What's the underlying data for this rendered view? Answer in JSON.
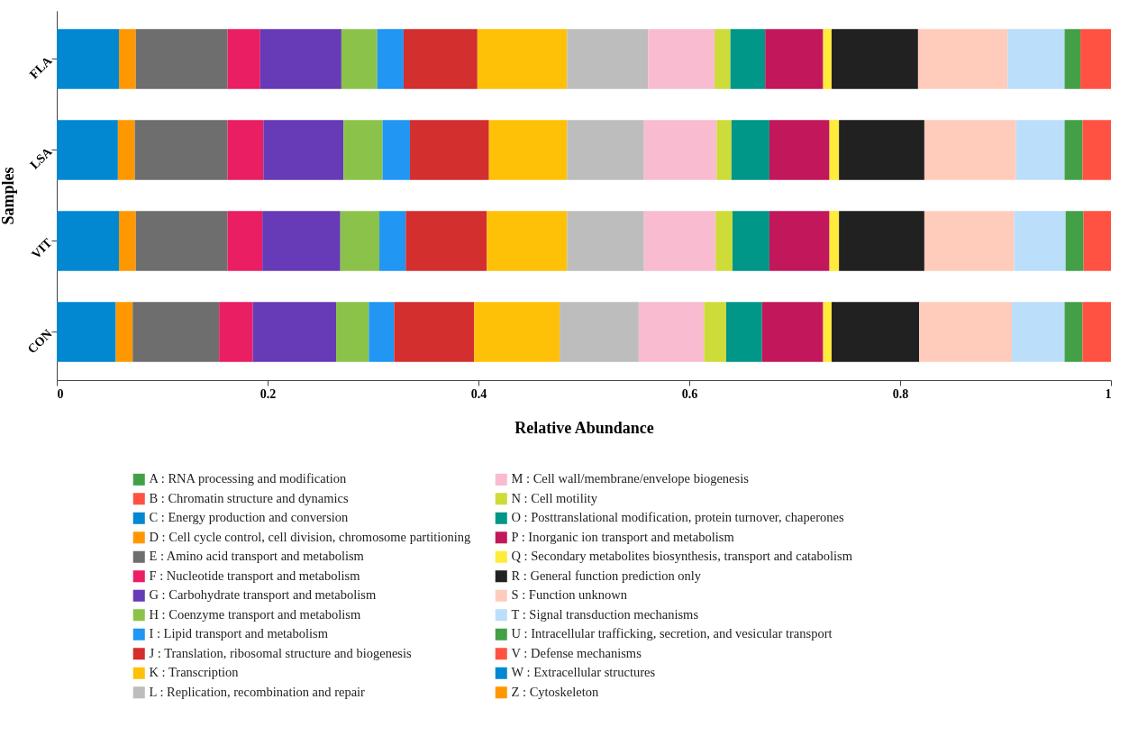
{
  "chart_data": {
    "type": "bar",
    "orientation": "horizontal",
    "stacked": true,
    "xlabel": "Relative Abundance",
    "ylabel": "Samples",
    "categories": [
      "FLA",
      "LSA",
      "VIT",
      "CON"
    ],
    "xlim": [
      0,
      1
    ],
    "xticks": [
      0,
      0.2,
      0.4,
      0.6,
      0.8,
      1
    ],
    "grid": false,
    "legend": "bottom",
    "series": [
      {
        "name": "A : RNA processing and modification",
        "color": "#43a047",
        "values": [
          0,
          0,
          0,
          0
        ]
      },
      {
        "name": "B : Chromatin structure and dynamics",
        "color": "#ff5242",
        "values": [
          0,
          0,
          0,
          0
        ]
      },
      {
        "name": "C : Energy production and conversion",
        "color": "#0288d1",
        "values": [
          0.059,
          0.058,
          0.059,
          0.056
        ]
      },
      {
        "name": "D : Cell cycle control, cell division, chromosome partitioning",
        "color": "#ff9800",
        "values": [
          0.016,
          0.016,
          0.016,
          0.016
        ]
      },
      {
        "name": "E : Amino acid transport and metabolism",
        "color": "#6e6e6e",
        "values": [
          0.087,
          0.088,
          0.087,
          0.082
        ]
      },
      {
        "name": "F : Nucleotide transport and metabolism",
        "color": "#e91e63",
        "values": [
          0.031,
          0.034,
          0.033,
          0.032
        ]
      },
      {
        "name": "G : Carbohydrate transport and metabolism",
        "color": "#673ab7",
        "values": [
          0.077,
          0.076,
          0.074,
          0.079
        ]
      },
      {
        "name": "H : Coenzyme transport and metabolism",
        "color": "#8bc34a",
        "values": [
          0.034,
          0.037,
          0.037,
          0.031
        ]
      },
      {
        "name": "I : Lipid transport and metabolism",
        "color": "#2196f3",
        "values": [
          0.025,
          0.026,
          0.025,
          0.024
        ]
      },
      {
        "name": "J : Translation, ribosomal structure and biogenesis",
        "color": "#d32f2f",
        "values": [
          0.07,
          0.075,
          0.077,
          0.076
        ]
      },
      {
        "name": "K : Transcription",
        "color": "#ffc107",
        "values": [
          0.085,
          0.074,
          0.076,
          0.081
        ]
      },
      {
        "name": "L : Replication, recombination and repair",
        "color": "#bdbdbd",
        "values": [
          0.077,
          0.073,
          0.073,
          0.075
        ]
      },
      {
        "name": "M : Cell wall/membrane/envelope biogenesis",
        "color": "#f8bbd0",
        "values": [
          0.063,
          0.069,
          0.068,
          0.062
        ]
      },
      {
        "name": "N : Cell motility",
        "color": "#cddc39",
        "values": [
          0.015,
          0.014,
          0.016,
          0.021
        ]
      },
      {
        "name": "O : Posttranslational modification, protein turnover, chaperones",
        "color": "#009688",
        "values": [
          0.033,
          0.036,
          0.035,
          0.034
        ]
      },
      {
        "name": "P : Inorganic ion transport and metabolism",
        "color": "#c2185b",
        "values": [
          0.055,
          0.057,
          0.057,
          0.058
        ]
      },
      {
        "name": "Q : Secondary metabolites biosynthesis, transport and catabolism",
        "color": "#ffeb3b",
        "values": [
          0.008,
          0.009,
          0.009,
          0.008
        ]
      },
      {
        "name": "R : General function prediction only",
        "color": "#212121",
        "values": [
          0.082,
          0.081,
          0.081,
          0.083
        ]
      },
      {
        "name": "S : Function unknown",
        "color": "#ffccbc",
        "values": [
          0.085,
          0.087,
          0.085,
          0.088
        ]
      },
      {
        "name": "T : Signal transduction mechanisms",
        "color": "#bbdefb",
        "values": [
          0.054,
          0.046,
          0.049,
          0.05
        ]
      },
      {
        "name": "U : Intracellular trafficking, secretion, and vesicular transport",
        "color": "#43a047",
        "values": [
          0.015,
          0.017,
          0.017,
          0.017
        ]
      },
      {
        "name": "V : Defense mechanisms",
        "color": "#ff5242",
        "values": [
          0.029,
          0.027,
          0.026,
          0.027
        ]
      },
      {
        "name": "W : Extracellular structures",
        "color": "#0288d1",
        "values": [
          0,
          0,
          0,
          0
        ]
      },
      {
        "name": "Z : Cytoskeleton",
        "color": "#ff9800",
        "values": [
          0,
          0,
          0,
          0
        ]
      }
    ]
  }
}
